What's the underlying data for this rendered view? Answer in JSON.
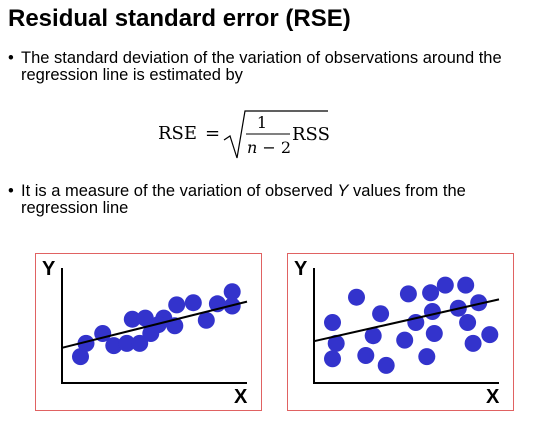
{
  "slide": {
    "title": "Residual standard error (RSE)",
    "bullets": [
      {
        "marker": "•",
        "text": "The standard deviation of the variation of observations around the regression line is estimated by"
      },
      {
        "marker": "•",
        "parts": [
          "It is a measure of the variation of observed ",
          "Y",
          " values from the regression line"
        ]
      }
    ],
    "formula": {
      "lhs": "RSE",
      "equals": "=",
      "numerator": "1",
      "denominator_var": "n",
      "denominator_rest": " − 2",
      "term": "RSS"
    }
  },
  "chart_data": [
    {
      "type": "scatter",
      "xlabel": "X",
      "ylabel": "Y",
      "xlim": [
        0,
        10
      ],
      "ylim": [
        0,
        10
      ],
      "regression_line": {
        "x": [
          0,
          10
        ],
        "y": [
          3.2,
          7.4
        ]
      },
      "point_color": "#3333cc",
      "points": [
        {
          "x": 1.0,
          "y": 2.4
        },
        {
          "x": 1.3,
          "y": 3.6
        },
        {
          "x": 2.2,
          "y": 4.5
        },
        {
          "x": 2.8,
          "y": 3.4
        },
        {
          "x": 3.5,
          "y": 3.6
        },
        {
          "x": 4.2,
          "y": 3.6
        },
        {
          "x": 4.8,
          "y": 4.5
        },
        {
          "x": 3.8,
          "y": 5.8
        },
        {
          "x": 4.5,
          "y": 5.9
        },
        {
          "x": 5.5,
          "y": 5.9
        },
        {
          "x": 5.2,
          "y": 5.3
        },
        {
          "x": 6.1,
          "y": 5.2
        },
        {
          "x": 6.2,
          "y": 7.1
        },
        {
          "x": 7.1,
          "y": 7.3
        },
        {
          "x": 7.8,
          "y": 5.7
        },
        {
          "x": 8.4,
          "y": 7.2
        },
        {
          "x": 9.2,
          "y": 7.0
        },
        {
          "x": 9.2,
          "y": 8.3
        }
      ]
    },
    {
      "type": "scatter",
      "xlabel": "X",
      "ylabel": "Y",
      "xlim": [
        0,
        10
      ],
      "ylim": [
        0,
        10
      ],
      "regression_line": {
        "x": [
          0,
          10
        ],
        "y": [
          3.8,
          7.6
        ]
      },
      "point_color": "#3333cc",
      "points": [
        {
          "x": 1.0,
          "y": 5.5
        },
        {
          "x": 1.2,
          "y": 3.6
        },
        {
          "x": 1.0,
          "y": 2.2
        },
        {
          "x": 2.3,
          "y": 7.8
        },
        {
          "x": 2.8,
          "y": 2.5
        },
        {
          "x": 3.2,
          "y": 4.3
        },
        {
          "x": 3.9,
          "y": 1.6
        },
        {
          "x": 3.6,
          "y": 6.3
        },
        {
          "x": 4.9,
          "y": 3.9
        },
        {
          "x": 5.1,
          "y": 8.1
        },
        {
          "x": 5.5,
          "y": 5.5
        },
        {
          "x": 6.1,
          "y": 2.4
        },
        {
          "x": 6.3,
          "y": 8.2
        },
        {
          "x": 6.4,
          "y": 6.5
        },
        {
          "x": 6.5,
          "y": 4.5
        },
        {
          "x": 7.1,
          "y": 8.9
        },
        {
          "x": 7.8,
          "y": 6.8
        },
        {
          "x": 8.2,
          "y": 8.9
        },
        {
          "x": 8.3,
          "y": 5.5
        },
        {
          "x": 8.6,
          "y": 3.6
        },
        {
          "x": 8.9,
          "y": 7.3
        },
        {
          "x": 9.5,
          "y": 4.4
        }
      ]
    }
  ]
}
